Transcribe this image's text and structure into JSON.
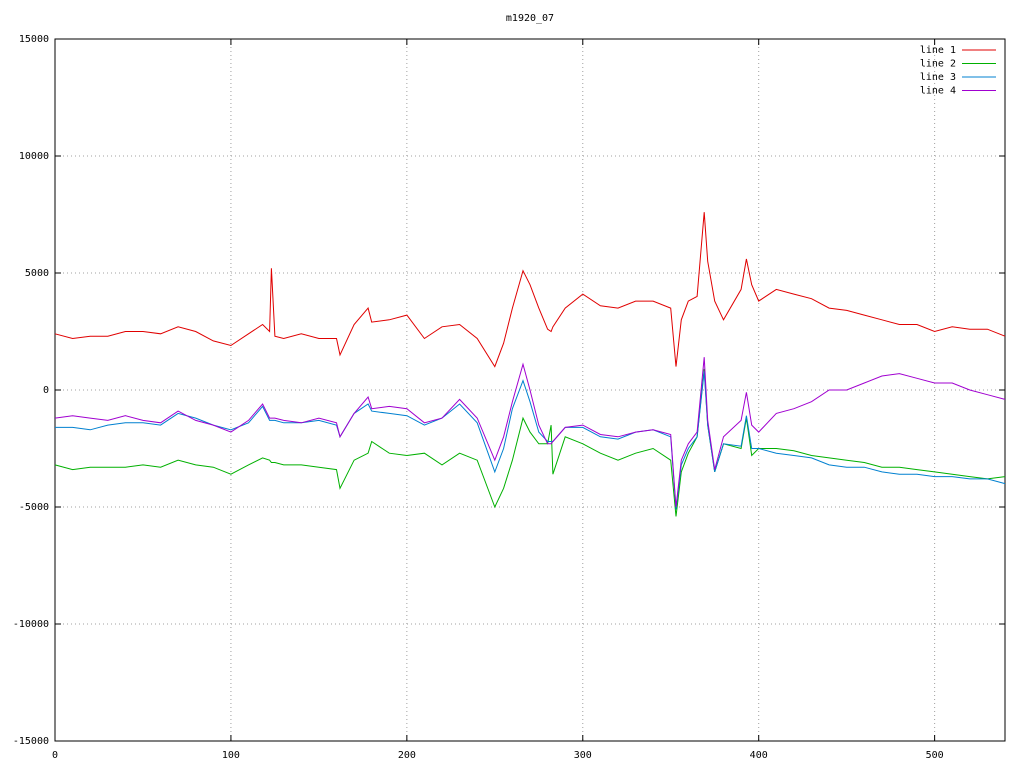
{
  "chart_data": {
    "type": "line",
    "title": "m1920_07",
    "x": [
      0,
      10,
      20,
      30,
      40,
      50,
      60,
      70,
      80,
      90,
      100,
      110,
      118,
      122,
      123,
      125,
      130,
      140,
      150,
      160,
      162,
      170,
      178,
      180,
      190,
      200,
      210,
      220,
      230,
      240,
      250,
      255,
      260,
      266,
      270,
      275,
      280,
      282,
      283,
      290,
      300,
      310,
      320,
      330,
      340,
      350,
      353,
      356,
      360,
      365,
      369,
      371,
      375,
      380,
      390,
      393,
      396,
      400,
      410,
      420,
      430,
      440,
      450,
      460,
      470,
      480,
      490,
      500,
      510,
      520,
      530,
      540
    ],
    "series": [
      {
        "name": "line 1",
        "color": "#e00000",
        "values": [
          2400,
          2200,
          2300,
          2300,
          2500,
          2500,
          2400,
          2700,
          2500,
          2100,
          1900,
          2400,
          2800,
          2500,
          5200,
          2300,
          2200,
          2400,
          2200,
          2200,
          1500,
          2800,
          3500,
          2900,
          3000,
          3200,
          2200,
          2700,
          2800,
          2200,
          1000,
          2000,
          3500,
          5100,
          4500,
          3500,
          2600,
          2500,
          2700,
          3500,
          4100,
          3600,
          3500,
          3800,
          3800,
          3500,
          1000,
          3000,
          3800,
          4000,
          7600,
          5500,
          3800,
          3000,
          4300,
          5600,
          4500,
          3800,
          4300,
          4100,
          3900,
          3500,
          3400,
          3200,
          3000,
          2800,
          2800,
          2500,
          2700,
          2600,
          2600,
          2300
        ]
      },
      {
        "name": "line 2",
        "color": "#00b000",
        "values": [
          -3200,
          -3400,
          -3300,
          -3300,
          -3300,
          -3200,
          -3300,
          -3000,
          -3200,
          -3300,
          -3600,
          -3200,
          -2900,
          -3000,
          -3100,
          -3100,
          -3200,
          -3200,
          -3300,
          -3400,
          -4200,
          -3000,
          -2700,
          -2200,
          -2700,
          -2800,
          -2700,
          -3200,
          -2700,
          -3000,
          -5000,
          -4200,
          -3000,
          -1200,
          -1800,
          -2300,
          -2300,
          -1500,
          -3600,
          -2000,
          -2300,
          -2700,
          -3000,
          -2700,
          -2500,
          -3000,
          -5400,
          -3500,
          -2700,
          -2000,
          900,
          -1500,
          -3500,
          -2300,
          -2500,
          -1200,
          -2800,
          -2500,
          -2500,
          -2600,
          -2800,
          -2900,
          -3000,
          -3100,
          -3300,
          -3300,
          -3400,
          -3500,
          -3600,
          -3700,
          -3800,
          -3700
        ]
      },
      {
        "name": "line 3",
        "color": "#0080d0",
        "values": [
          -1600,
          -1600,
          -1700,
          -1500,
          -1400,
          -1400,
          -1500,
          -1000,
          -1200,
          -1500,
          -1700,
          -1400,
          -700,
          -1300,
          -1300,
          -1300,
          -1400,
          -1400,
          -1300,
          -1500,
          -2000,
          -1000,
          -600,
          -900,
          -1000,
          -1100,
          -1500,
          -1200,
          -600,
          -1400,
          -3500,
          -2500,
          -800,
          400,
          -500,
          -1800,
          -2200,
          -2200,
          -2200,
          -1600,
          -1600,
          -2000,
          -2100,
          -1800,
          -1700,
          -2000,
          -5100,
          -3200,
          -2500,
          -2000,
          800,
          -1500,
          -3500,
          -2300,
          -2400,
          -1100,
          -2500,
          -2500,
          -2700,
          -2800,
          -2900,
          -3200,
          -3300,
          -3300,
          -3500,
          -3600,
          -3600,
          -3700,
          -3700,
          -3800,
          -3800,
          -4000
        ]
      },
      {
        "name": "line 4",
        "color": "#a000d0",
        "values": [
          -1200,
          -1100,
          -1200,
          -1300,
          -1100,
          -1300,
          -1400,
          -900,
          -1300,
          -1500,
          -1800,
          -1300,
          -600,
          -1200,
          -1200,
          -1200,
          -1300,
          -1400,
          -1200,
          -1400,
          -2000,
          -1000,
          -300,
          -800,
          -700,
          -800,
          -1400,
          -1200,
          -400,
          -1200,
          -3000,
          -2000,
          -500,
          1100,
          0,
          -1500,
          -2300,
          -2300,
          -2200,
          -1600,
          -1500,
          -1900,
          -2000,
          -1800,
          -1700,
          -1900,
          -5000,
          -3000,
          -2300,
          -1800,
          1400,
          -1300,
          -3400,
          -2000,
          -1300,
          -100,
          -1500,
          -1800,
          -1000,
          -800,
          -500,
          0,
          0,
          300,
          600,
          700,
          500,
          300,
          300,
          0,
          -200,
          -400
        ]
      }
    ],
    "xlim": [
      0,
      540
    ],
    "xticks": [
      0,
      100,
      200,
      300,
      400,
      500
    ],
    "ylim": [
      -15000,
      15000
    ],
    "yticks": [
      -15000,
      -10000,
      -5000,
      0,
      5000,
      10000,
      15000
    ],
    "grid": true,
    "legend": "top-right"
  }
}
